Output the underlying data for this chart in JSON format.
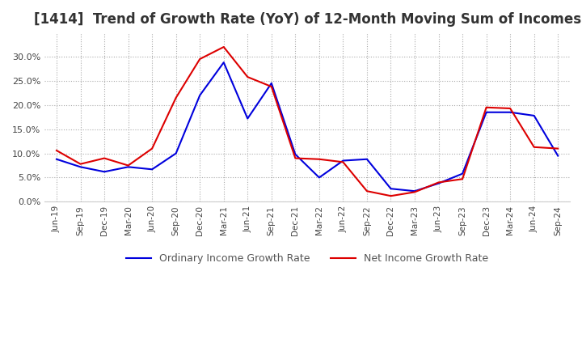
{
  "title": "[1414]  Trend of Growth Rate (YoY) of 12-Month Moving Sum of Incomes",
  "title_fontsize": 12,
  "ylim": [
    0.0,
    0.35
  ],
  "yticks": [
    0.0,
    0.05,
    0.1,
    0.15,
    0.2,
    0.25,
    0.3
  ],
  "background_color": "#ffffff",
  "grid_color": "#aaaaaa",
  "x_labels": [
    "Jun-19",
    "Sep-19",
    "Dec-19",
    "Mar-20",
    "Jun-20",
    "Sep-20",
    "Dec-20",
    "Mar-21",
    "Jun-21",
    "Sep-21",
    "Dec-21",
    "Mar-22",
    "Jun-22",
    "Sep-22",
    "Dec-22",
    "Mar-23",
    "Jun-23",
    "Sep-23",
    "Dec-23",
    "Mar-24",
    "Jun-24",
    "Sep-24"
  ],
  "ordinary_income": [
    0.088,
    0.072,
    0.062,
    0.072,
    0.067,
    0.1,
    0.22,
    0.288,
    0.172,
    0.245,
    0.098,
    0.05,
    0.085,
    0.088,
    0.027,
    0.022,
    0.038,
    0.058,
    0.185,
    0.185,
    0.178,
    0.095
  ],
  "net_income": [
    0.106,
    0.078,
    0.09,
    0.075,
    0.11,
    0.215,
    0.295,
    0.32,
    0.258,
    0.238,
    0.09,
    0.088,
    0.082,
    0.022,
    0.012,
    0.02,
    0.04,
    0.047,
    0.195,
    0.193,
    0.113,
    0.11
  ],
  "ordinary_color": "#0000dd",
  "net_color": "#dd0000",
  "line_width": 1.5,
  "legend_ordinary": "Ordinary Income Growth Rate",
  "legend_net": "Net Income Growth Rate"
}
